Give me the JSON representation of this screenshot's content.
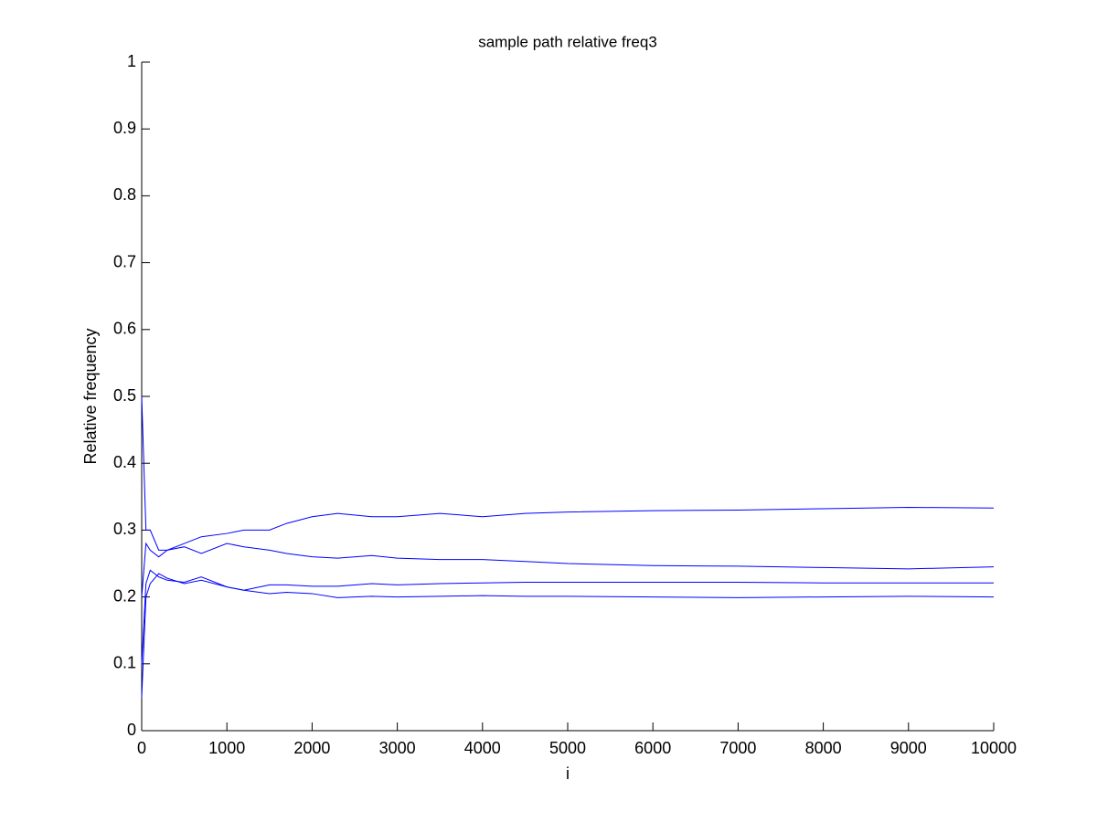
{
  "chart_data": {
    "type": "line",
    "title": "sample path relative freq3",
    "x_label": "i",
    "y_label": "Relative frequency",
    "x": [
      0,
      50,
      100,
      200,
      300,
      500,
      700,
      1000,
      1200,
      1500,
      1700,
      2000,
      2300,
      2700,
      3000,
      3500,
      4000,
      4500,
      5000,
      6000,
      7000,
      8000,
      9000,
      10000
    ],
    "series": [
      {
        "color": "#0000ff",
        "values": [
          0.5,
          0.3,
          0.3,
          0.27,
          0.27,
          0.28,
          0.29,
          0.295,
          0.3,
          0.3,
          0.31,
          0.32,
          0.325,
          0.32,
          0.32,
          0.325,
          0.32,
          0.325,
          0.327,
          0.329,
          0.33,
          0.332,
          0.334,
          0.333
        ]
      },
      {
        "color": "#0000ff",
        "values": [
          0.2,
          0.28,
          0.27,
          0.26,
          0.27,
          0.275,
          0.265,
          0.28,
          0.275,
          0.27,
          0.265,
          0.26,
          0.258,
          0.262,
          0.258,
          0.256,
          0.256,
          0.253,
          0.25,
          0.247,
          0.246,
          0.244,
          0.242,
          0.245
        ]
      },
      {
        "color": "#0000ff",
        "values": [
          0.1,
          0.22,
          0.24,
          0.23,
          0.225,
          0.222,
          0.23,
          0.215,
          0.21,
          0.218,
          0.218,
          0.216,
          0.216,
          0.22,
          0.218,
          0.22,
          0.221,
          0.222,
          0.222,
          0.222,
          0.222,
          0.221,
          0.221,
          0.221
        ]
      },
      {
        "color": "#0000ff",
        "values": [
          0.05,
          0.2,
          0.22,
          0.235,
          0.228,
          0.22,
          0.225,
          0.215,
          0.21,
          0.205,
          0.207,
          0.205,
          0.199,
          0.201,
          0.2,
          0.201,
          0.202,
          0.201,
          0.201,
          0.2,
          0.199,
          0.2,
          0.201,
          0.2
        ]
      }
    ],
    "xlim": [
      0,
      10000
    ],
    "xticks": [
      0,
      1000,
      2000,
      3000,
      4000,
      5000,
      6000,
      7000,
      8000,
      9000,
      10000
    ],
    "ylim": [
      0,
      1
    ],
    "yticks": [
      0,
      0.1,
      0.2,
      0.3,
      0.4,
      0.5,
      0.6,
      0.7,
      0.8,
      0.9,
      1
    ],
    "grid": false
  }
}
